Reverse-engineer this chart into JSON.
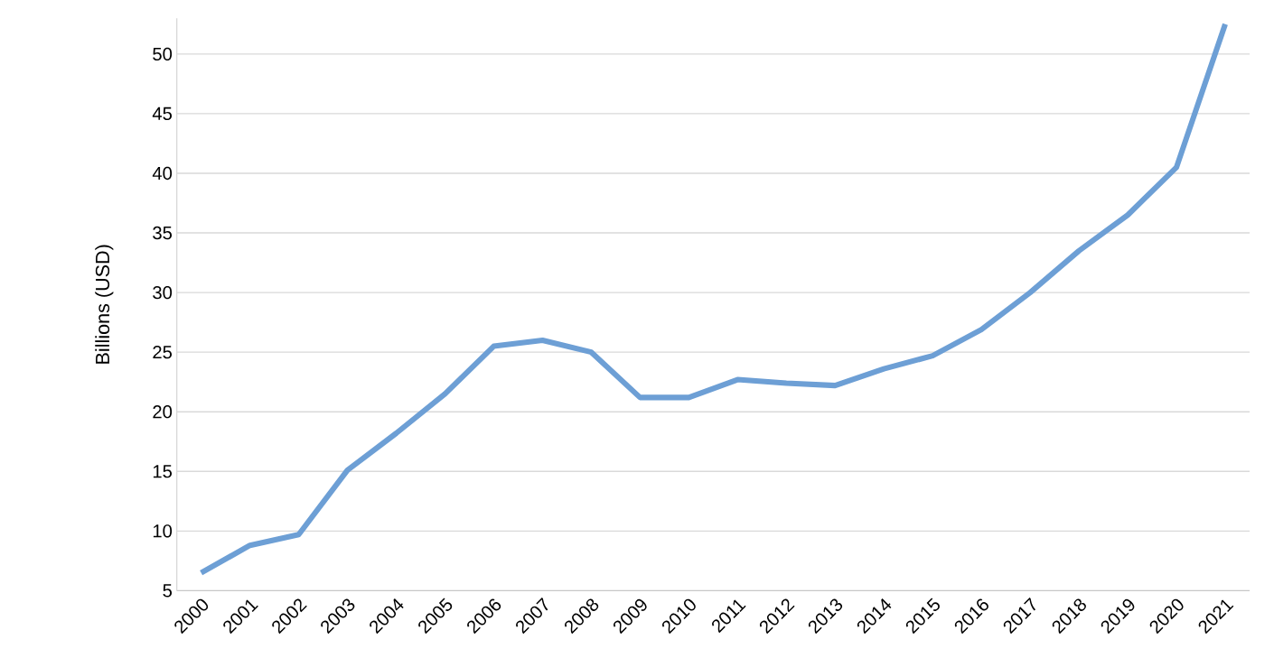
{
  "chart_data": {
    "type": "line",
    "ylabel": "Billions (USD)",
    "categories": [
      "2000",
      "2001",
      "2002",
      "2003",
      "2004",
      "2005",
      "2006",
      "2007",
      "2008",
      "2009",
      "2010",
      "2011",
      "2012",
      "2013",
      "2014",
      "2015",
      "2016",
      "2017",
      "2018",
      "2019",
      "2020",
      "2021"
    ],
    "values": [
      6.5,
      8.8,
      9.7,
      15.1,
      18.2,
      21.5,
      25.5,
      26.0,
      25.0,
      21.2,
      21.2,
      22.7,
      22.4,
      22.2,
      23.6,
      24.7,
      26.9,
      30.0,
      33.5,
      36.5,
      40.5,
      52.5
    ],
    "color": "#6d9fd5",
    "ylim": [
      5,
      53
    ],
    "yticks": [
      5,
      10,
      15,
      20,
      25,
      30,
      35,
      40,
      45,
      50
    ],
    "grid": "y",
    "marker": "none",
    "line_style": "solid"
  }
}
